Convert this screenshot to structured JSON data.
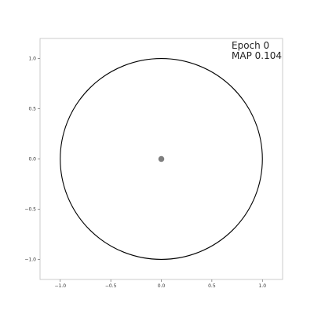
{
  "chart_data": {
    "type": "scatter",
    "title": "",
    "xlabel": "",
    "ylabel": "",
    "xlim": [
      -1.2,
      1.2
    ],
    "ylim": [
      -1.2,
      1.2
    ],
    "grid": false,
    "xticks": [
      -1.0,
      -0.5,
      0.0,
      0.5,
      1.0
    ],
    "yticks": [
      -1.0,
      -0.5,
      0.0,
      0.5,
      1.0
    ],
    "xtick_labels": [
      "−1.0",
      "−0.5",
      "0.0",
      "0.5",
      "1.0"
    ],
    "ytick_labels": [
      "−1.0",
      "−0.5",
      "0.0",
      "0.5",
      "1.0"
    ],
    "annotations": {
      "epoch": "Epoch 0",
      "map": "MAP 0.104"
    },
    "unit_circle": {
      "center": [
        0,
        0
      ],
      "radius": 1.0,
      "color": "#000000"
    },
    "points": [
      {
        "x": 0.0,
        "y": 0.0,
        "color": "#7f7f7f"
      }
    ]
  }
}
